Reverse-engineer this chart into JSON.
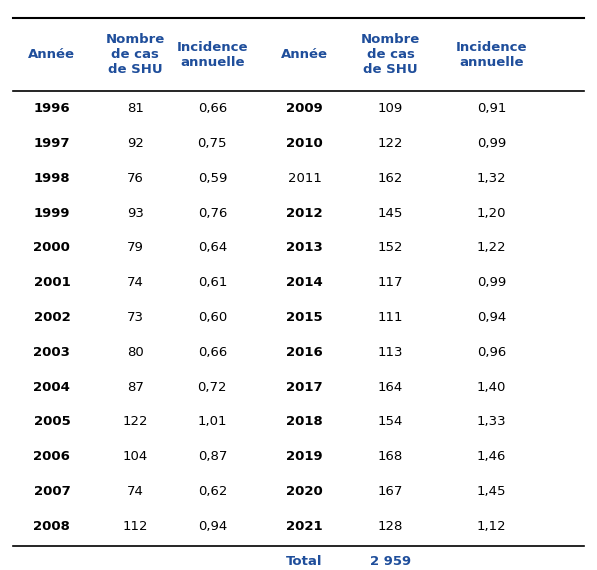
{
  "header_color": "#1F4E9B",
  "text_color_black": "#000000",
  "background_color": "#ffffff",
  "col_headers": [
    "Année",
    "Nombre\nde cas\nde SHU",
    "Incidence\nannuelle",
    "Année",
    "Nombre\nde cas\nde SHU",
    "Incidence\nannuelle"
  ],
  "left_years": [
    "1996",
    "1997",
    "1998",
    "1999",
    "2000",
    "2001",
    "2002",
    "2003",
    "2004",
    "2005",
    "2006",
    "2007",
    "2008"
  ],
  "left_cases": [
    81,
    92,
    76,
    93,
    79,
    74,
    73,
    80,
    87,
    122,
    104,
    74,
    112
  ],
  "left_incidence": [
    "0,66",
    "0,75",
    "0,59",
    "0,76",
    "0,64",
    "0,61",
    "0,60",
    "0,66",
    "0,72",
    "1,01",
    "0,87",
    "0,62",
    "0,94"
  ],
  "right_years": [
    "2009",
    "2010",
    "2011",
    "2012",
    "2013",
    "2014",
    "2015",
    "2016",
    "2017",
    "2018",
    "2019",
    "2020",
    "2021"
  ],
  "right_cases": [
    109,
    122,
    162,
    145,
    152,
    117,
    111,
    113,
    164,
    154,
    168,
    167,
    128
  ],
  "right_incidence": [
    "0,91",
    "0,99",
    "1,32",
    "1,20",
    "1,22",
    "0,99",
    "0,94",
    "0,96",
    "1,40",
    "1,33",
    "1,46",
    "1,45",
    "1,12"
  ],
  "right_years_not_bold": [
    "2011"
  ],
  "total_label": "Total",
  "total_value": "2 959",
  "figsize": [
    5.97,
    5.7
  ],
  "dpi": 100
}
